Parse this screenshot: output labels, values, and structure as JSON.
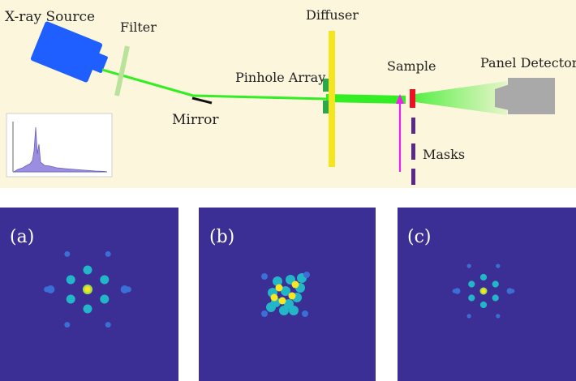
{
  "setup": {
    "labels": {
      "source": "X-ray Source",
      "filter": "Filter",
      "mirror": "Mirror",
      "pinhole": "Pinhole Array",
      "diffuser": "Diffuser",
      "sample": "Sample",
      "detector": "Panel Detector",
      "masks": "Masks"
    },
    "colors": {
      "background": "#fbf6dc",
      "source": "#1f5fff",
      "beam": "#33ee22",
      "filter": "#b9e39a",
      "diffuser": "#f5e51f",
      "pinhole": "#2aa84a",
      "sample": "#ee1122",
      "arrow": "#ee22ee",
      "masks": "#5a2a8a",
      "detector": "#a9a9a9",
      "spectrum_fill": "#9b8ee0"
    }
  },
  "patterns": [
    {
      "label": "(a)"
    },
    {
      "label": "(b)"
    },
    {
      "label": "(c)"
    }
  ],
  "pattern_colors": {
    "background": "#3b2e94",
    "low": "#3a6fd6",
    "mid": "#22b6c8",
    "high": "#a8e04a",
    "peak": "#f8e61e"
  }
}
